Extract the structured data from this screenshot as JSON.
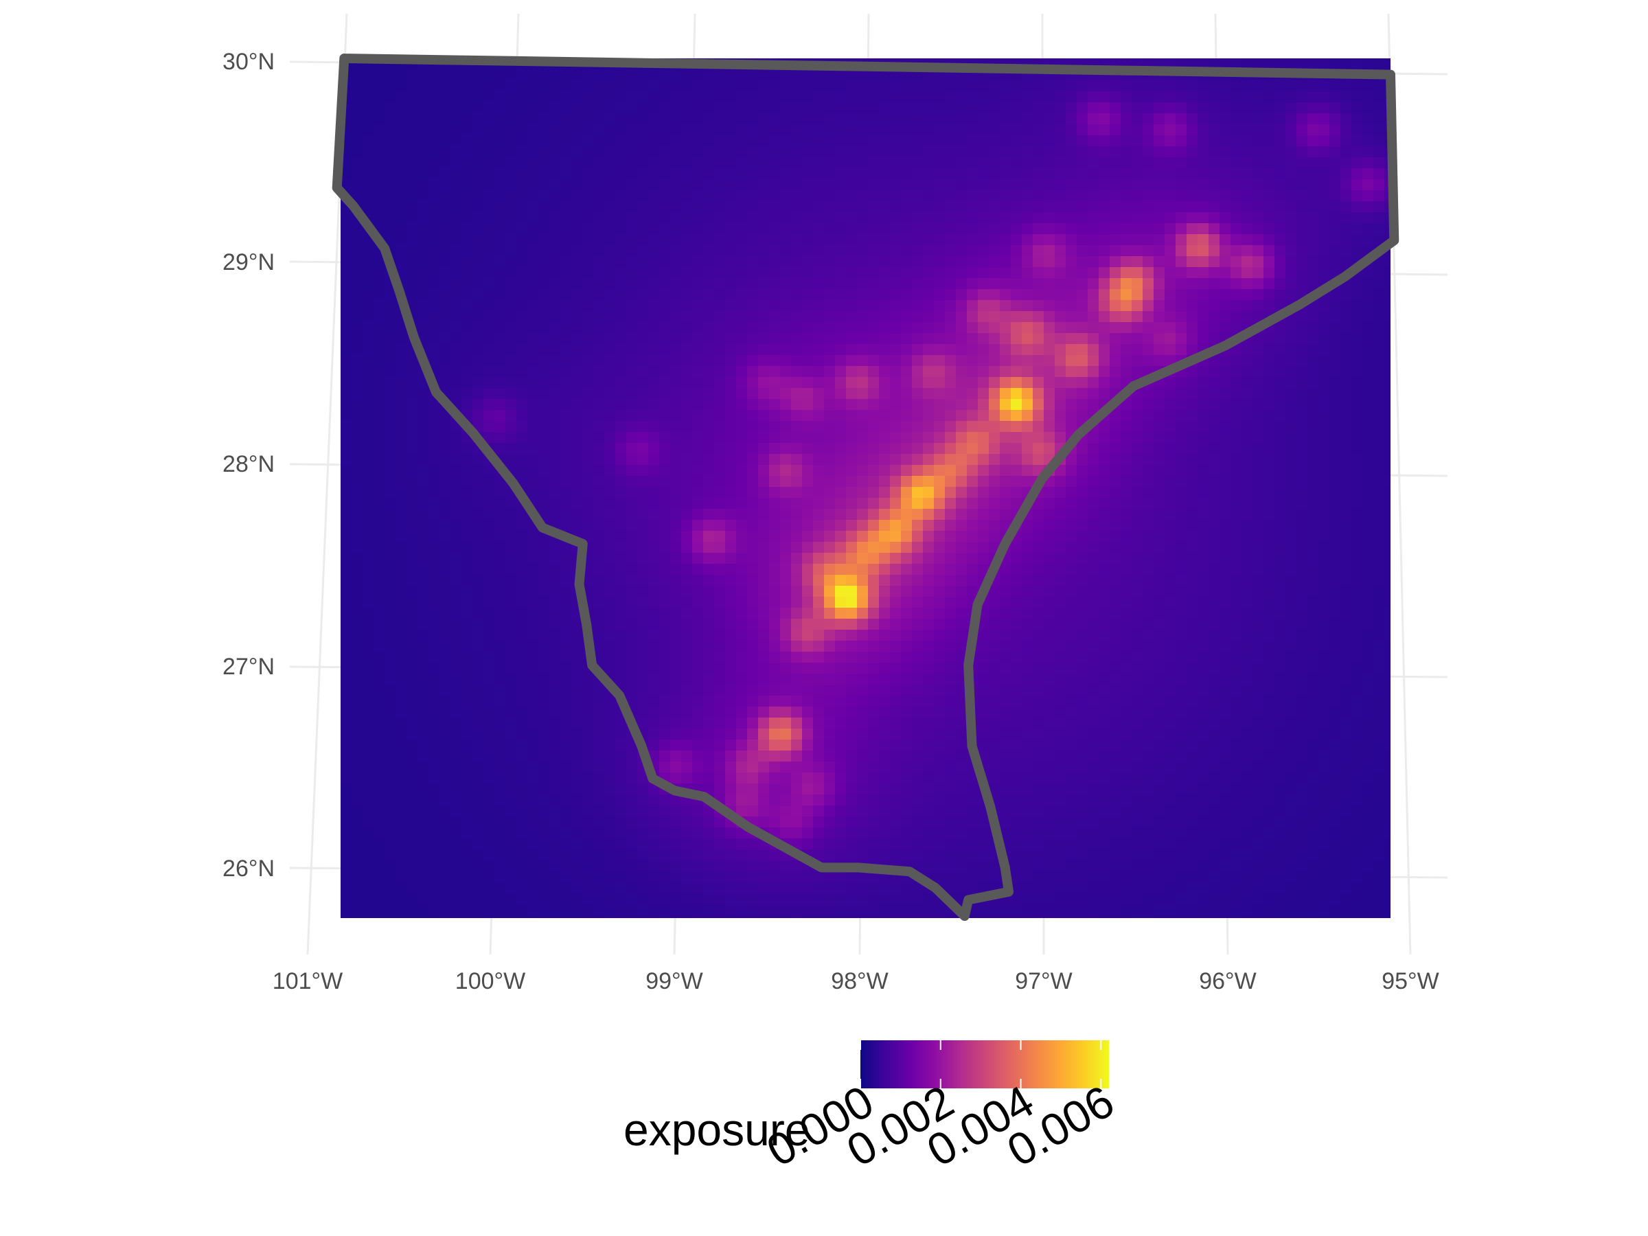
{
  "map": {
    "type": "raster-heatmap",
    "variable": "exposure",
    "lon_range": [
      -100.82,
      -95.1
    ],
    "lat_range": [
      25.75,
      30.0
    ],
    "graticule": {
      "lon_labels": [
        "101°W",
        "100°W",
        "99°W",
        "98°W",
        "97°W",
        "96°W",
        "95°W"
      ],
      "lat_labels": [
        "30°N",
        "29°N",
        "28°N",
        "27°N",
        "26°N"
      ]
    },
    "hotspots": [
      {
        "lon": -98.06,
        "lat": 27.33,
        "value": 0.0047
      },
      {
        "lon": -97.14,
        "lat": 28.3,
        "value": 0.0045
      },
      {
        "lon": -97.66,
        "lat": 27.84,
        "value": 0.0035
      },
      {
        "lon": -97.8,
        "lat": 27.66,
        "value": 0.0028
      },
      {
        "lon": -98.42,
        "lat": 26.66,
        "value": 0.0031
      },
      {
        "lon": -96.14,
        "lat": 29.07,
        "value": 0.0026
      },
      {
        "lon": -96.5,
        "lat": 28.9,
        "value": 0.0022
      },
      {
        "lon": -96.56,
        "lat": 28.8,
        "value": 0.0022
      },
      {
        "lon": -96.8,
        "lat": 28.52,
        "value": 0.002
      },
      {
        "lon": -97.08,
        "lat": 28.64,
        "value": 0.0018
      },
      {
        "lon": -97.36,
        "lat": 28.1,
        "value": 0.0018
      },
      {
        "lon": -97.0,
        "lat": 28.05,
        "value": 0.0016
      },
      {
        "lon": -97.5,
        "lat": 27.96,
        "value": 0.0018
      },
      {
        "lon": -97.96,
        "lat": 27.55,
        "value": 0.0022
      },
      {
        "lon": -98.18,
        "lat": 27.46,
        "value": 0.0016
      },
      {
        "lon": -98.28,
        "lat": 27.16,
        "value": 0.0015
      },
      {
        "lon": -98.8,
        "lat": 27.62,
        "value": 0.0014
      },
      {
        "lon": -98.4,
        "lat": 27.96,
        "value": 0.0012
      },
      {
        "lon": -98.0,
        "lat": 28.4,
        "value": 0.0014
      },
      {
        "lon": -97.3,
        "lat": 28.75,
        "value": 0.0013
      },
      {
        "lon": -96.98,
        "lat": 29.04,
        "value": 0.0011
      },
      {
        "lon": -95.86,
        "lat": 28.98,
        "value": 0.0017
      },
      {
        "lon": -96.3,
        "lat": 29.65,
        "value": 0.0011
      },
      {
        "lon": -95.5,
        "lat": 29.65,
        "value": 0.0011
      },
      {
        "lon": -96.68,
        "lat": 29.7,
        "value": 0.0011
      },
      {
        "lon": -95.22,
        "lat": 29.38,
        "value": 0.0011
      },
      {
        "lon": -98.6,
        "lat": 26.5,
        "value": 0.0012
      },
      {
        "lon": -98.62,
        "lat": 26.3,
        "value": 0.0011
      },
      {
        "lon": -99.0,
        "lat": 26.5,
        "value": 0.001
      },
      {
        "lon": -98.25,
        "lat": 26.4,
        "value": 0.001
      },
      {
        "lon": -98.36,
        "lat": 26.22,
        "value": 0.0009
      },
      {
        "lon": -98.3,
        "lat": 28.32,
        "value": 0.001
      },
      {
        "lon": -99.2,
        "lat": 28.06,
        "value": 0.0008
      },
      {
        "lon": -99.98,
        "lat": 28.22,
        "value": 0.0007
      },
      {
        "lon": -97.6,
        "lat": 28.45,
        "value": 0.0011
      },
      {
        "lon": -98.5,
        "lat": 28.4,
        "value": 0.0009
      },
      {
        "lon": -96.3,
        "lat": 28.6,
        "value": 0.0009
      }
    ],
    "boundary_lonlat": [
      [
        -100.8,
        30.0
      ],
      [
        -95.1,
        29.92
      ],
      [
        -95.08,
        29.1
      ],
      [
        -95.35,
        28.92
      ],
      [
        -95.6,
        28.78
      ],
      [
        -96.0,
        28.58
      ],
      [
        -96.5,
        28.38
      ],
      [
        -96.8,
        28.14
      ],
      [
        -97.0,
        27.92
      ],
      [
        -97.2,
        27.6
      ],
      [
        -97.35,
        27.3
      ],
      [
        -97.4,
        27.0
      ],
      [
        -97.38,
        26.6
      ],
      [
        -97.28,
        26.3
      ],
      [
        -97.2,
        26.0
      ],
      [
        -97.18,
        25.88
      ],
      [
        -97.4,
        25.84
      ],
      [
        -97.42,
        25.76
      ],
      [
        -97.58,
        25.9
      ],
      [
        -97.72,
        25.98
      ],
      [
        -98.0,
        26.0
      ],
      [
        -98.2,
        26.0
      ],
      [
        -98.4,
        26.1
      ],
      [
        -98.6,
        26.2
      ],
      [
        -98.84,
        26.35
      ],
      [
        -99.0,
        26.38
      ],
      [
        -99.12,
        26.44
      ],
      [
        -99.18,
        26.6
      ],
      [
        -99.3,
        26.85
      ],
      [
        -99.45,
        27.0
      ],
      [
        -99.48,
        27.2
      ],
      [
        -99.52,
        27.4
      ],
      [
        -99.5,
        27.6
      ],
      [
        -99.72,
        27.68
      ],
      [
        -99.88,
        27.9
      ],
      [
        -100.1,
        28.15
      ],
      [
        -100.3,
        28.35
      ],
      [
        -100.42,
        28.62
      ],
      [
        -100.5,
        28.85
      ],
      [
        -100.58,
        29.06
      ],
      [
        -100.75,
        29.27
      ],
      [
        -100.84,
        29.36
      ],
      [
        -100.8,
        30.0
      ]
    ]
  },
  "legend": {
    "title": "exposure",
    "tick_labels": [
      "0.000",
      "0.002",
      "0.004",
      "0.006"
    ],
    "tick_values": [
      0.0,
      0.002,
      0.004,
      0.006
    ],
    "max": 0.0062,
    "colors": [
      "#0D0887",
      "#3F049C",
      "#6A00A8",
      "#8F0DA4",
      "#B12A90",
      "#CC4778",
      "#E16462",
      "#F2844B",
      "#FCA636",
      "#FCCE25",
      "#F0F921"
    ]
  }
}
